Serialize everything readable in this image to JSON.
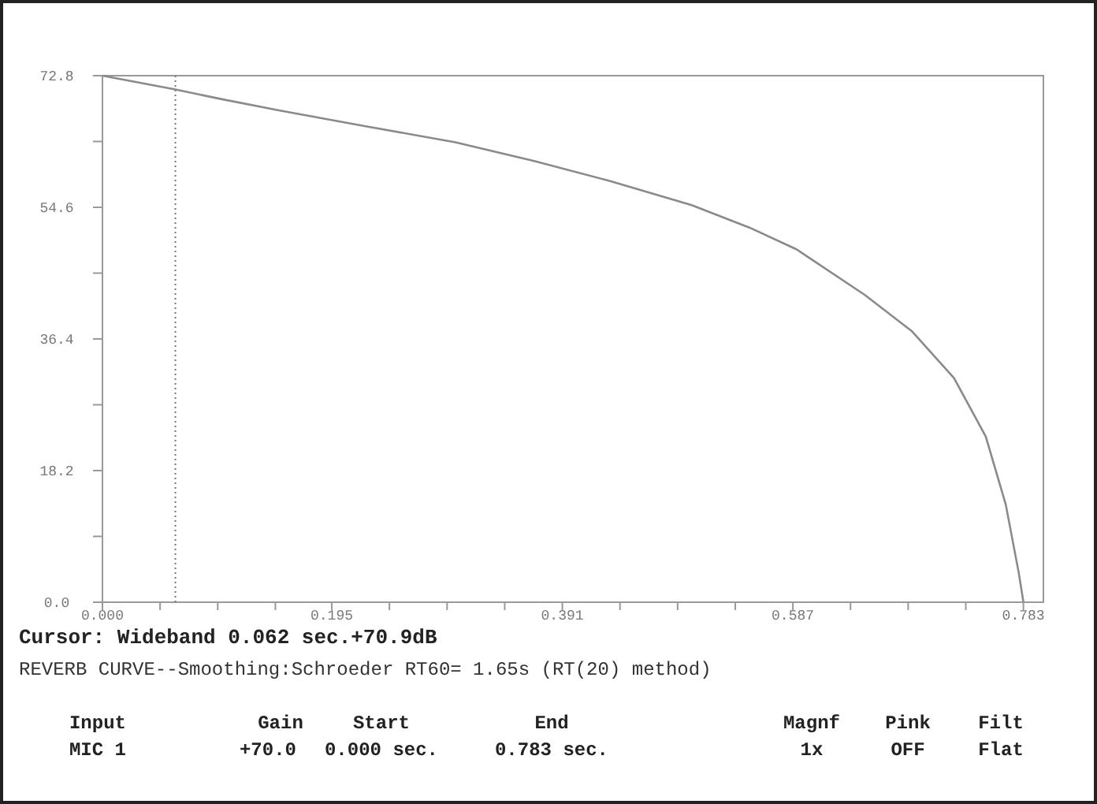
{
  "chart_data": {
    "type": "line",
    "x": [
      0,
      0.062,
      0.1,
      0.15,
      0.224,
      0.3,
      0.367,
      0.43,
      0.501,
      0.55,
      0.59,
      0.648,
      0.688,
      0.724,
      0.751,
      0.768,
      0.779,
      0.783
    ],
    "series": [
      {
        "color": "#8a8a8a",
        "values": [
          72.8,
          70.9,
          69.6,
          68.0,
          65.8,
          63.6,
          61.0,
          58.3,
          54.9,
          51.8,
          48.8,
          42.5,
          37.5,
          31.0,
          22.9,
          13.5,
          4.1,
          0
        ]
      }
    ],
    "xlim": [
      0,
      0.8
    ],
    "ylim": [
      0,
      72.8
    ],
    "xticks": [
      {
        "value": 0,
        "label": "0.000"
      },
      {
        "value": 0.049,
        "label": null
      },
      {
        "value": 0.098,
        "label": null
      },
      {
        "value": 0.147,
        "label": null
      },
      0.195,
      {
        "value": 0.244,
        "label": null
      },
      {
        "value": 0.293,
        "label": null
      },
      {
        "value": 0.342,
        "label": null
      },
      0.391,
      {
        "value": 0.44,
        "label": null
      },
      {
        "value": 0.489,
        "label": null
      },
      {
        "value": 0.538,
        "label": null
      },
      0.587,
      {
        "value": 0.636,
        "label": null
      },
      {
        "value": 0.685,
        "label": null
      },
      {
        "value": 0.734,
        "label": null
      },
      0.783
    ],
    "yticks": [
      {
        "value": 0,
        "label": "0.0"
      },
      {
        "value": 9.1,
        "label": null
      },
      18.2,
      {
        "value": 27.3,
        "label": null
      },
      36.4,
      {
        "value": 45.5,
        "label": null
      },
      54.6,
      {
        "value": 63.7,
        "label": null
      },
      72.8
    ],
    "ref_lines": [
      {
        "axis": "x",
        "value": 0.062,
        "line_style": "dotted",
        "color": "#777777"
      }
    ],
    "marker": "none",
    "line_style": "solid",
    "annotations": [
      "Cursor: Wideband  0.062 sec.+70.9dB",
      "REVERB CURVE--Smoothing:Schroeder RT60= 1.65s (RT(20) method)",
      "Input",
      "Gain",
      "Start",
      "End",
      "Magnf",
      "Pink",
      "Filt",
      "MIC 1",
      "+70.0",
      "0.000 sec.",
      "0.783 sec.",
      "1x",
      "OFF",
      "Flat"
    ]
  }
}
